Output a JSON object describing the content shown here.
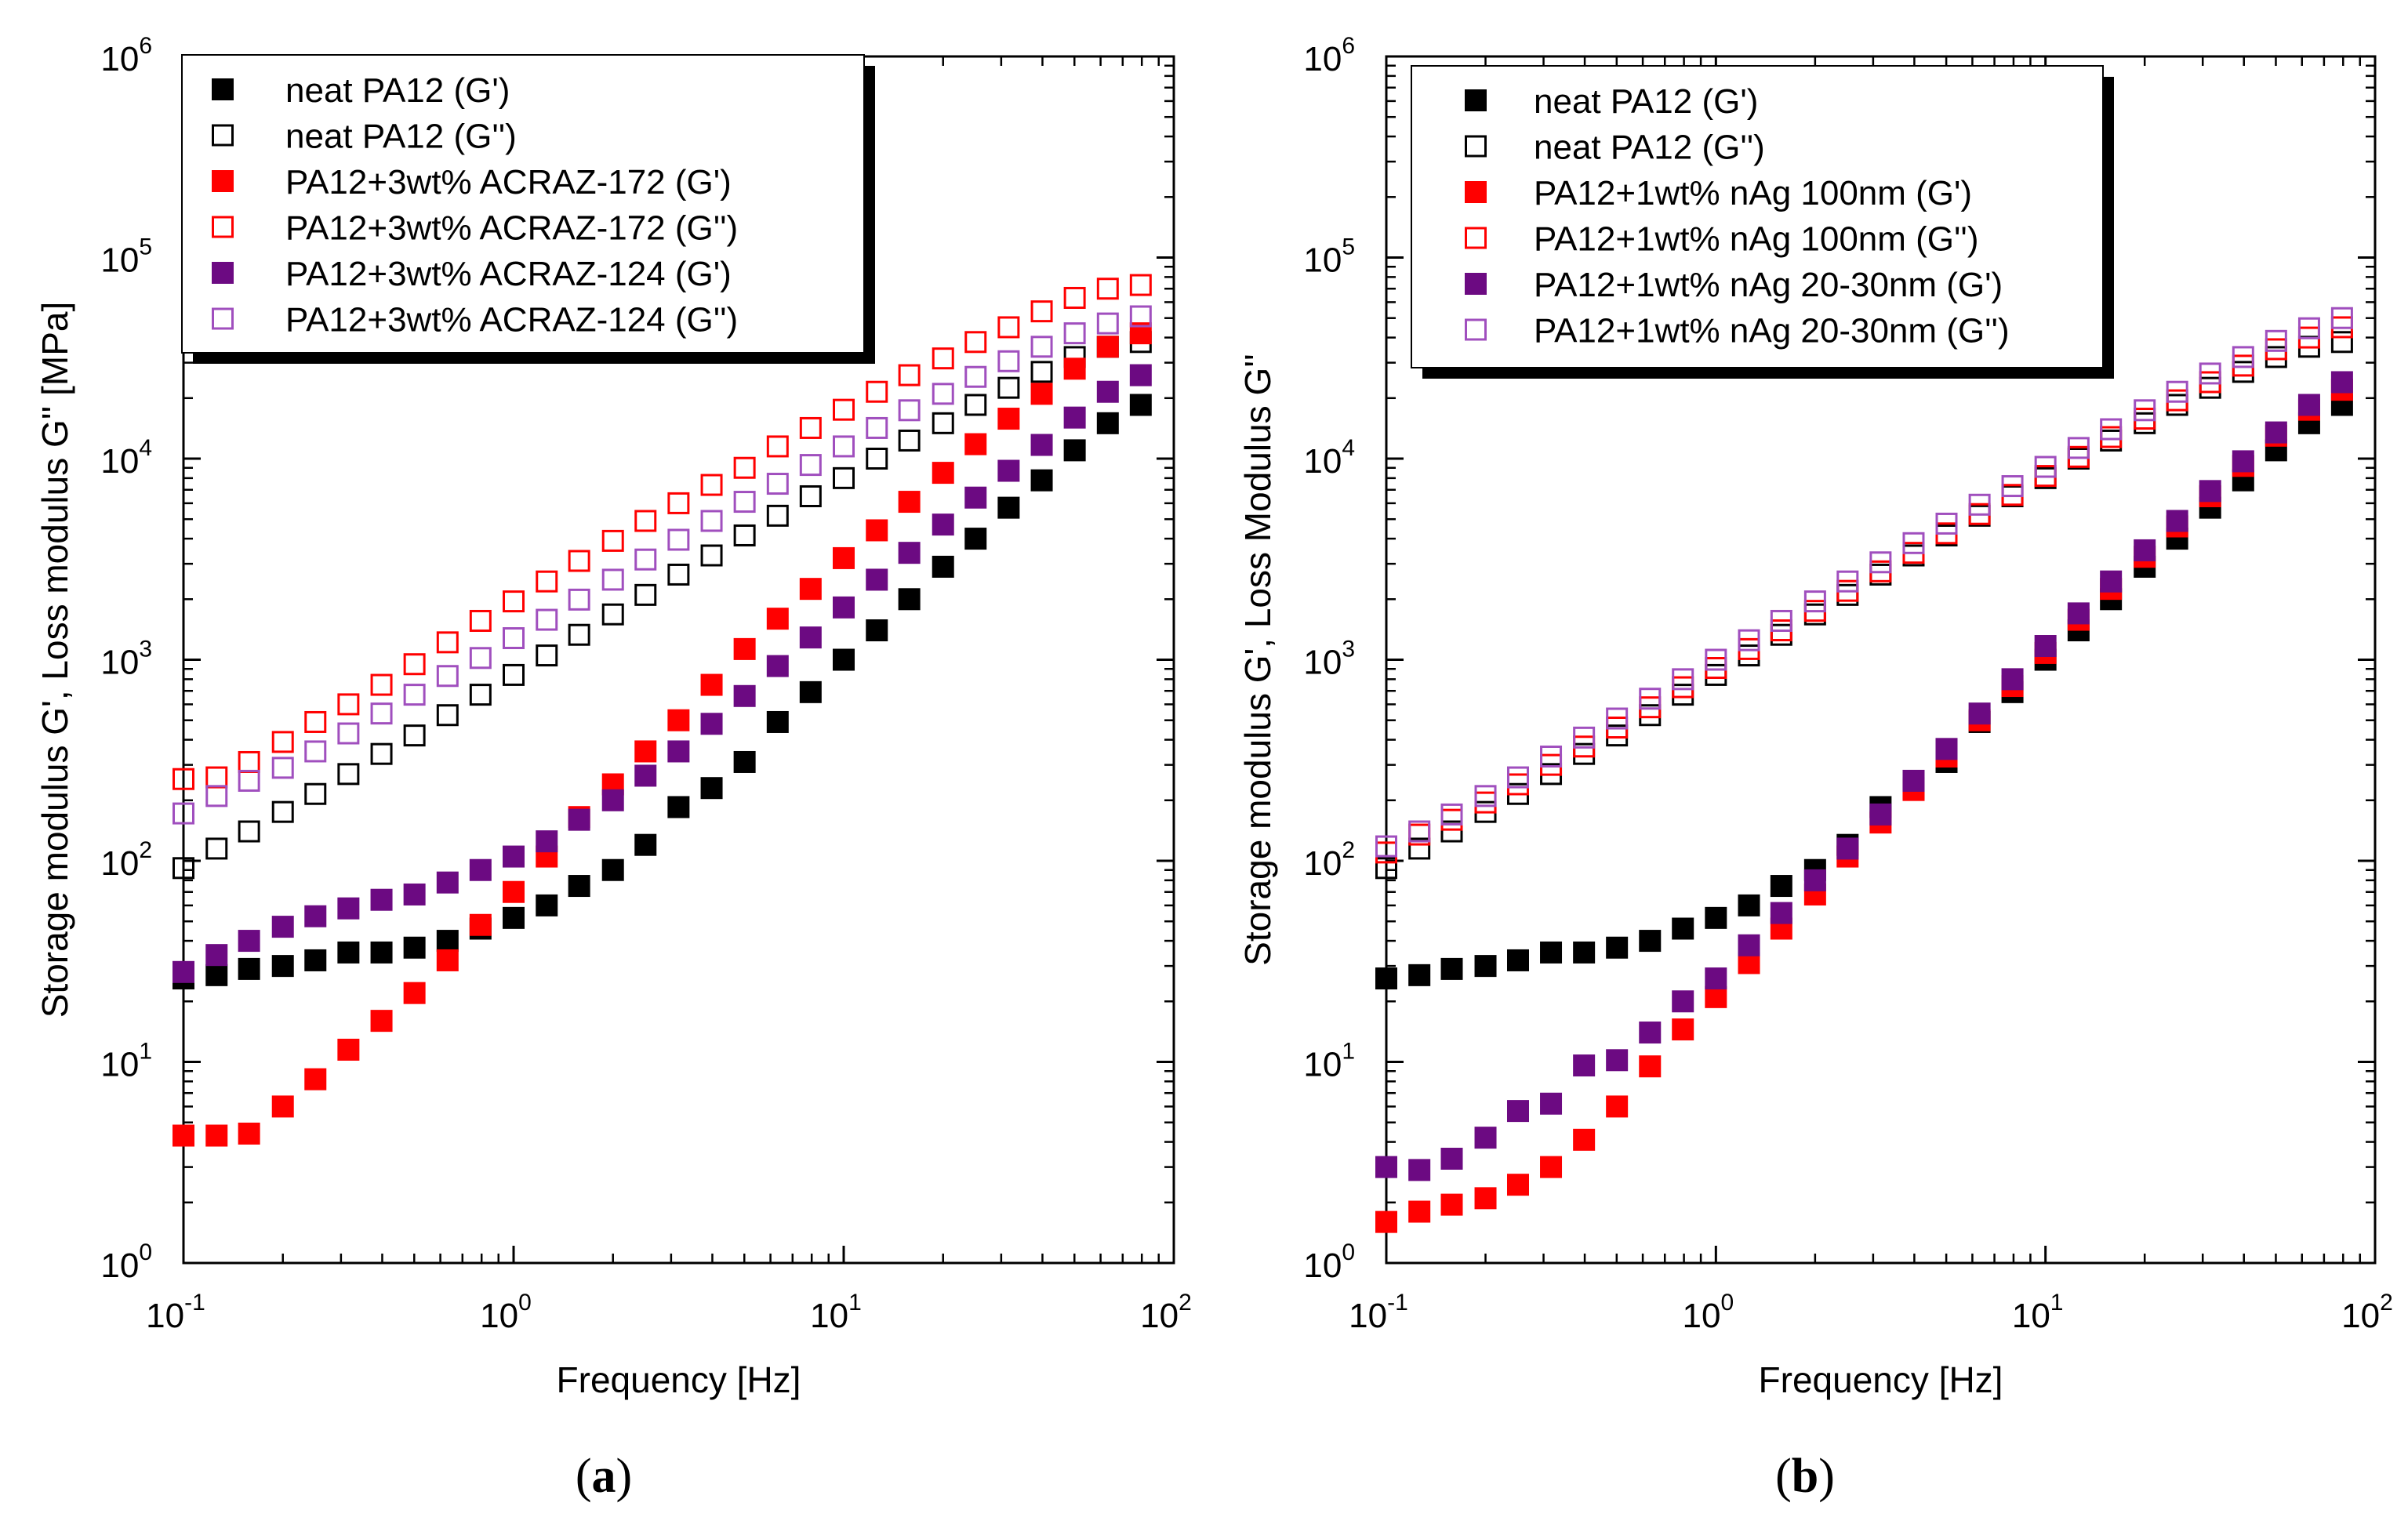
{
  "chart_data": [
    {
      "type": "scatter",
      "panel_label": "a",
      "title": "",
      "xlabel": "Frequency [Hz]",
      "ylabel": "Storage modulus G', Loss modulus G'' [MPa]",
      "xscale": "log",
      "yscale": "log",
      "xlim": [
        0.1,
        100
      ],
      "ylim": [
        1,
        1000000
      ],
      "x_ticks": [
        {
          "base": "10",
          "exp": "-1"
        },
        {
          "base": "10",
          "exp": "0"
        },
        {
          "base": "10",
          "exp": "1"
        },
        {
          "base": "10",
          "exp": "2"
        }
      ],
      "y_ticks": [
        {
          "base": "10",
          "exp": "0"
        },
        {
          "base": "10",
          "exp": "1"
        },
        {
          "base": "10",
          "exp": "2"
        },
        {
          "base": "10",
          "exp": "3"
        },
        {
          "base": "10",
          "exp": "4"
        },
        {
          "base": "10",
          "exp": "5"
        },
        {
          "base": "10",
          "exp": "6"
        }
      ],
      "legend_position": "top-left",
      "x": [
        0.1,
        0.126,
        0.158,
        0.2,
        0.251,
        0.316,
        0.398,
        0.501,
        0.631,
        0.794,
        1.0,
        1.26,
        1.58,
        2.0,
        2.51,
        3.16,
        3.98,
        5.01,
        6.31,
        7.94,
        10.0,
        12.6,
        15.8,
        20.0,
        25.1,
        31.6,
        39.8,
        50.1,
        63.1,
        79.4
      ],
      "series": [
        {
          "name": "neat PA12 (G')",
          "color": "#000000",
          "marker": "filled-square",
          "values": [
            26,
            27,
            29,
            30,
            32,
            35,
            35,
            37,
            40,
            46,
            52,
            60,
            75,
            90,
            120,
            185,
            230,
            310,
            490,
            690,
            1000,
            1400,
            2000,
            2900,
            4000,
            5700,
            7800,
            11000,
            15000,
            18500
          ]
        },
        {
          "name": "neat PA12 (G'')",
          "color": "#000000",
          "marker": "open-square",
          "values": [
            92,
            115,
            140,
            175,
            215,
            270,
            340,
            420,
            530,
            670,
            840,
            1050,
            1330,
            1680,
            2100,
            2650,
            3300,
            4150,
            5200,
            6500,
            8000,
            10000,
            12300,
            15000,
            18500,
            22500,
            27000,
            32000,
            36000,
            38000
          ]
        },
        {
          "name": "PA12+3wt% ACRAZ-172 (G')",
          "color": "#ff0000",
          "marker": "filled-square",
          "values": [
            4.3,
            4.3,
            4.4,
            6,
            8.2,
            11.5,
            16,
            22,
            32,
            48,
            70,
            105,
            165,
            240,
            350,
            500,
            750,
            1130,
            1600,
            2250,
            3200,
            4400,
            6100,
            8500,
            11800,
            15800,
            21000,
            28000,
            36000,
            42000
          ]
        },
        {
          "name": "PA12+3wt% ACRAZ-172 (G'')",
          "color": "#ff0000",
          "marker": "open-square",
          "values": [
            255,
            260,
            310,
            390,
            490,
            600,
            750,
            950,
            1220,
            1560,
            1950,
            2450,
            3100,
            3900,
            4900,
            6000,
            7400,
            9000,
            11500,
            14200,
            17500,
            21500,
            26000,
            31500,
            38000,
            45000,
            54000,
            63000,
            70000,
            73000
          ]
        },
        {
          "name": "PA12+3wt% ACRAZ-124 (G')",
          "color": "#6c0a82",
          "marker": "filled-square",
          "values": [
            28,
            34,
            40,
            47,
            53,
            58,
            64,
            68,
            78,
            90,
            105,
            125,
            160,
            200,
            265,
            350,
            480,
            660,
            930,
            1290,
            1820,
            2500,
            3400,
            4700,
            6400,
            8700,
            11700,
            16000,
            21500,
            26000
          ]
        },
        {
          "name": "PA12+3wt% ACRAZ-124 (G'')",
          "color": "#a04fbe",
          "marker": "open-square",
          "values": [
            172,
            210,
            250,
            290,
            350,
            430,
            540,
            670,
            830,
            1020,
            1280,
            1580,
            1990,
            2500,
            3150,
            3950,
            4900,
            6100,
            7500,
            9300,
            11500,
            14200,
            17400,
            21000,
            25500,
            30500,
            36000,
            42000,
            47000,
            51000
          ]
        }
      ]
    },
    {
      "type": "scatter",
      "panel_label": "b",
      "title": "",
      "xlabel": "Frequency [Hz]",
      "ylabel": "Storage modulus G', Loss Modulus G''",
      "xscale": "log",
      "yscale": "log",
      "xlim": [
        0.1,
        100
      ],
      "ylim": [
        1,
        1000000
      ],
      "x_ticks": [
        {
          "base": "10",
          "exp": "-1"
        },
        {
          "base": "10",
          "exp": "0"
        },
        {
          "base": "10",
          "exp": "1"
        },
        {
          "base": "10",
          "exp": "2"
        }
      ],
      "y_ticks": [
        {
          "base": "10",
          "exp": "0"
        },
        {
          "base": "10",
          "exp": "1"
        },
        {
          "base": "10",
          "exp": "2"
        },
        {
          "base": "10",
          "exp": "3"
        },
        {
          "base": "10",
          "exp": "4"
        },
        {
          "base": "10",
          "exp": "5"
        },
        {
          "base": "10",
          "exp": "6"
        }
      ],
      "legend_position": "top-left",
      "x": [
        0.1,
        0.126,
        0.158,
        0.2,
        0.251,
        0.316,
        0.398,
        0.501,
        0.631,
        0.794,
        1.0,
        1.26,
        1.58,
        2.0,
        2.51,
        3.16,
        3.98,
        5.01,
        6.31,
        7.94,
        10.0,
        12.6,
        15.8,
        20.0,
        25.1,
        31.6,
        39.8,
        50.1,
        63.1,
        79.4
      ],
      "series": [
        {
          "name": "neat PA12 (G')",
          "color": "#000000",
          "marker": "filled-square",
          "values": [
            26,
            27,
            29,
            30,
            32,
            35,
            35,
            37,
            40,
            46,
            52,
            60,
            75,
            90,
            120,
            185,
            230,
            310,
            490,
            690,
            1000,
            1400,
            2000,
            2900,
            4000,
            5700,
            7800,
            11000,
            15000,
            18500
          ]
        },
        {
          "name": "neat PA12 (G'')",
          "color": "#000000",
          "marker": "open-square",
          "values": [
            92,
            115,
            140,
            175,
            215,
            270,
            340,
            420,
            530,
            670,
            840,
            1050,
            1330,
            1680,
            2100,
            2650,
            3300,
            4150,
            5200,
            6500,
            8000,
            10000,
            12300,
            15000,
            18500,
            22500,
            27000,
            32000,
            36000,
            38000
          ]
        },
        {
          "name": "PA12+1wt% nAg 100nm (G')",
          "color": "#ff0000",
          "marker": "filled-square",
          "values": [
            1.6,
            1.8,
            1.95,
            2.1,
            2.45,
            3.0,
            4.1,
            6.0,
            9.5,
            14.5,
            21,
            31,
            46,
            68,
            105,
            155,
            225,
            330,
            500,
            740,
            1080,
            1580,
            2250,
            3250,
            4600,
            6500,
            9200,
            13000,
            17500,
            22000
          ]
        },
        {
          "name": "PA12+1wt% nAg 100nm (G'')",
          "color": "#ff0000",
          "marker": "open-square",
          "values": [
            110,
            135,
            160,
            195,
            240,
            300,
            370,
            460,
            580,
            730,
            910,
            1130,
            1400,
            1750,
            2200,
            2750,
            3400,
            4250,
            5300,
            6600,
            8200,
            10200,
            12800,
            15800,
            19500,
            24000,
            29000,
            35000,
            40000,
            45000
          ]
        },
        {
          "name": "PA12+1wt% nAg 20-30nm (G')",
          "color": "#6c0a82",
          "marker": "filled-square",
          "values": [
            3.0,
            2.9,
            3.3,
            4.2,
            5.7,
            6.2,
            9.6,
            10.2,
            14,
            20,
            26,
            38,
            55,
            80,
            115,
            170,
            250,
            360,
            540,
            800,
            1170,
            1700,
            2450,
            3500,
            4900,
            6900,
            9700,
            13500,
            18500,
            24000
          ]
        },
        {
          "name": "PA12+1wt% nAg 20-30nm (G'')",
          "color": "#a04fbe",
          "marker": "open-square",
          "values": [
            118,
            140,
            170,
            210,
            260,
            330,
            410,
            510,
            640,
            800,
            1000,
            1250,
            1560,
            1950,
            2450,
            3050,
            3800,
            4750,
            5900,
            7300,
            9100,
            11300,
            14000,
            17400,
            21500,
            26500,
            32000,
            38500,
            44500,
            50000
          ]
        }
      ]
    }
  ]
}
